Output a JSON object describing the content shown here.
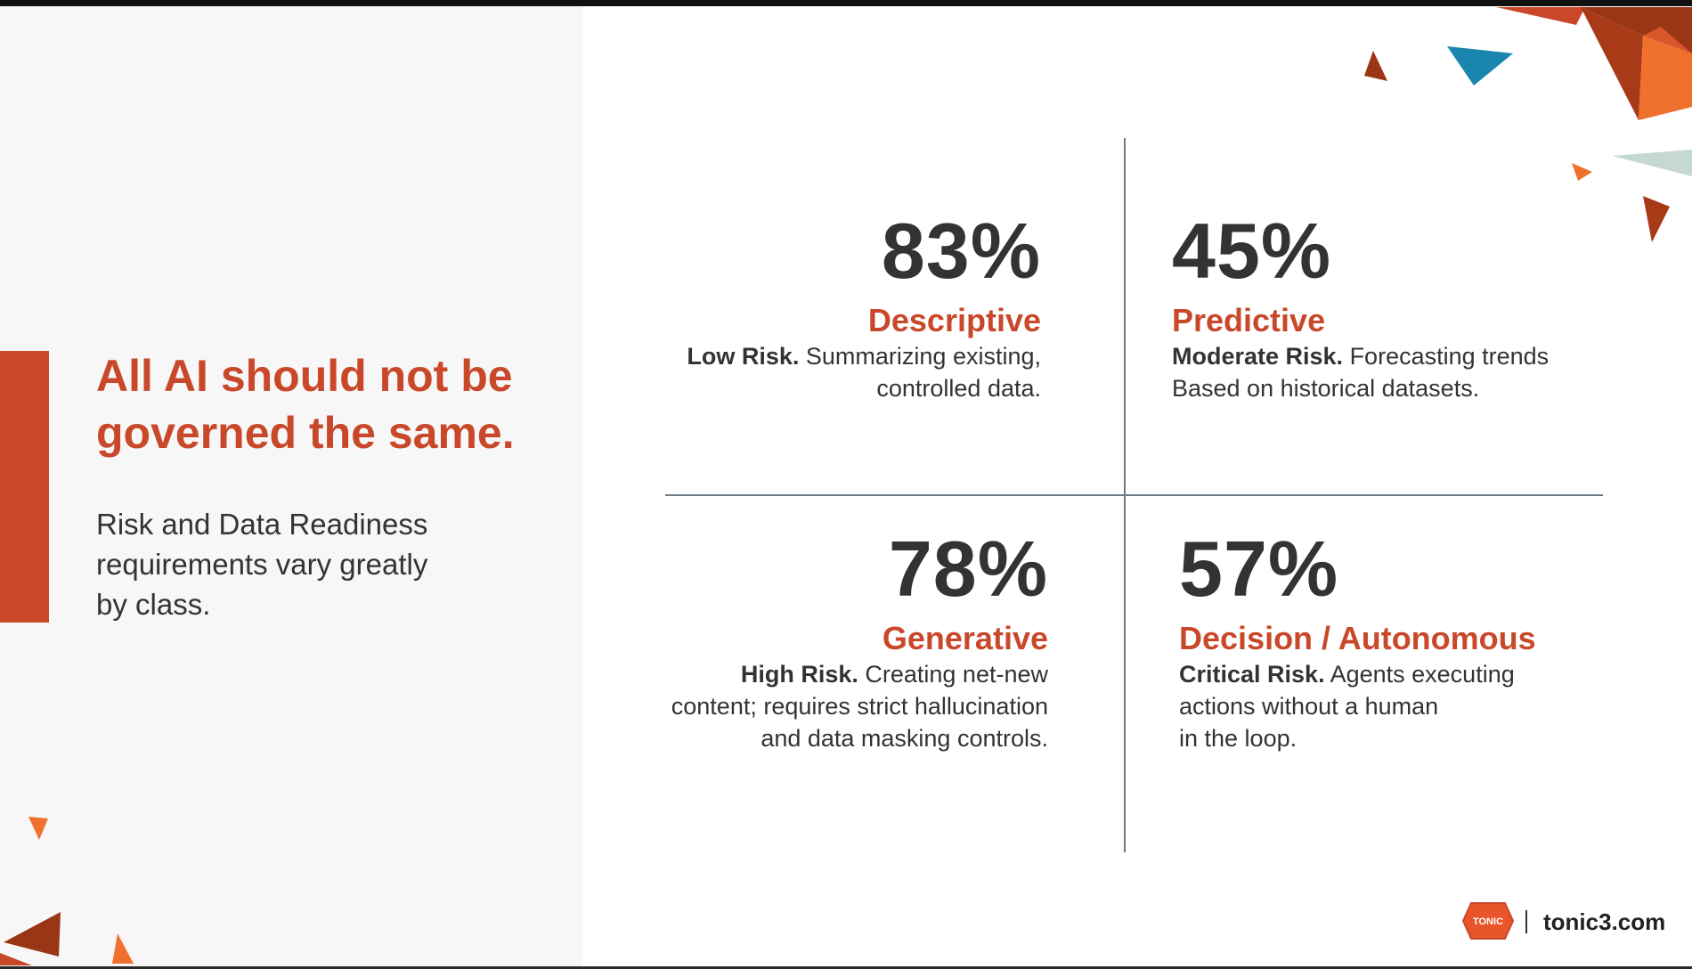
{
  "left": {
    "headline_line1": "All AI should not be",
    "headline_line2": "governed the same.",
    "subtext_line1": "Risk and Data Readiness",
    "subtext_line2": "requirements vary greatly",
    "subtext_line3": "by class."
  },
  "quadrants": [
    {
      "stat": "83%",
      "label": "Descriptive",
      "risk": "Low Risk.",
      "desc_line1": " Summarizing existing,",
      "desc_line2": "controlled data.",
      "desc_line3": ""
    },
    {
      "stat": "45%",
      "label": "Predictive",
      "risk": "Moderate Risk.",
      "desc_line1": " Forecasting trends",
      "desc_line2": "Based on historical datasets.",
      "desc_line3": ""
    },
    {
      "stat": "78%",
      "label": "Generative",
      "risk": "High Risk.",
      "desc_line1": " Creating net-new",
      "desc_line2": "content; requires strict hallucination",
      "desc_line3": "and data masking controls."
    },
    {
      "stat": "57%",
      "label": "Decision / Autonomous",
      "risk": "Critical Risk.",
      "desc_line1": " Agents executing",
      "desc_line2": "actions without a human",
      "desc_line3": "in the loop."
    }
  ],
  "footer": {
    "logo_text": "TONIC",
    "url": "tonic3.com"
  },
  "colors": {
    "accent": "#c9482a",
    "text_dark": "#333333",
    "divider": "#6d7b86",
    "orange_light": "#f0702e",
    "rust_dark": "#9a3515",
    "teal": "#1a86b0",
    "pale_teal": "#c5d8d3"
  }
}
